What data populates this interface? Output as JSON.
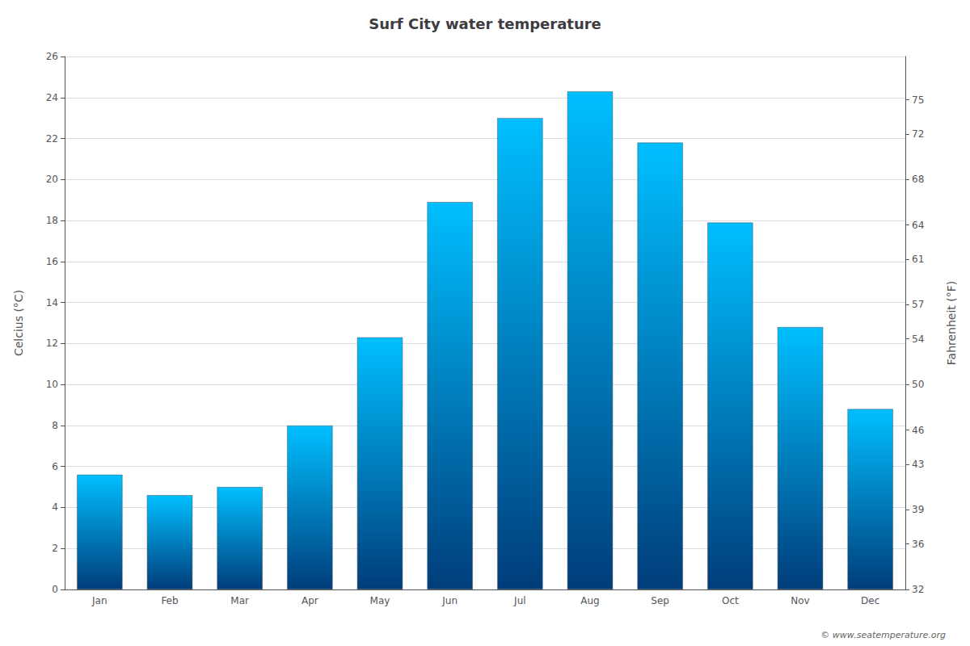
{
  "chart_data": {
    "type": "bar",
    "title": "Surf City water temperature",
    "categories": [
      "Jan",
      "Feb",
      "Mar",
      "Apr",
      "May",
      "Jun",
      "Jul",
      "Aug",
      "Sep",
      "Oct",
      "Nov",
      "Dec"
    ],
    "values": [
      5.6,
      4.6,
      5.0,
      8.0,
      12.3,
      18.9,
      23.0,
      24.3,
      21.8,
      17.9,
      12.8,
      8.8
    ],
    "color": {
      "bottom": "#003d7a",
      "top": "#00bfff"
    },
    "ylabel": "Celcius (°C)",
    "ylim": [
      0,
      26
    ],
    "yticks": [
      0,
      2,
      4,
      6,
      8,
      10,
      12,
      14,
      16,
      18,
      20,
      22,
      24,
      26
    ],
    "y2label": "Fahrenheit (°F)",
    "y2lim": [
      32,
      78.8
    ],
    "y2ticks": [
      32,
      36,
      39,
      43,
      46,
      50,
      54,
      57,
      61,
      64,
      68,
      72,
      75
    ],
    "grid": true,
    "annotations": [
      "© www.seatemperature.org"
    ]
  }
}
